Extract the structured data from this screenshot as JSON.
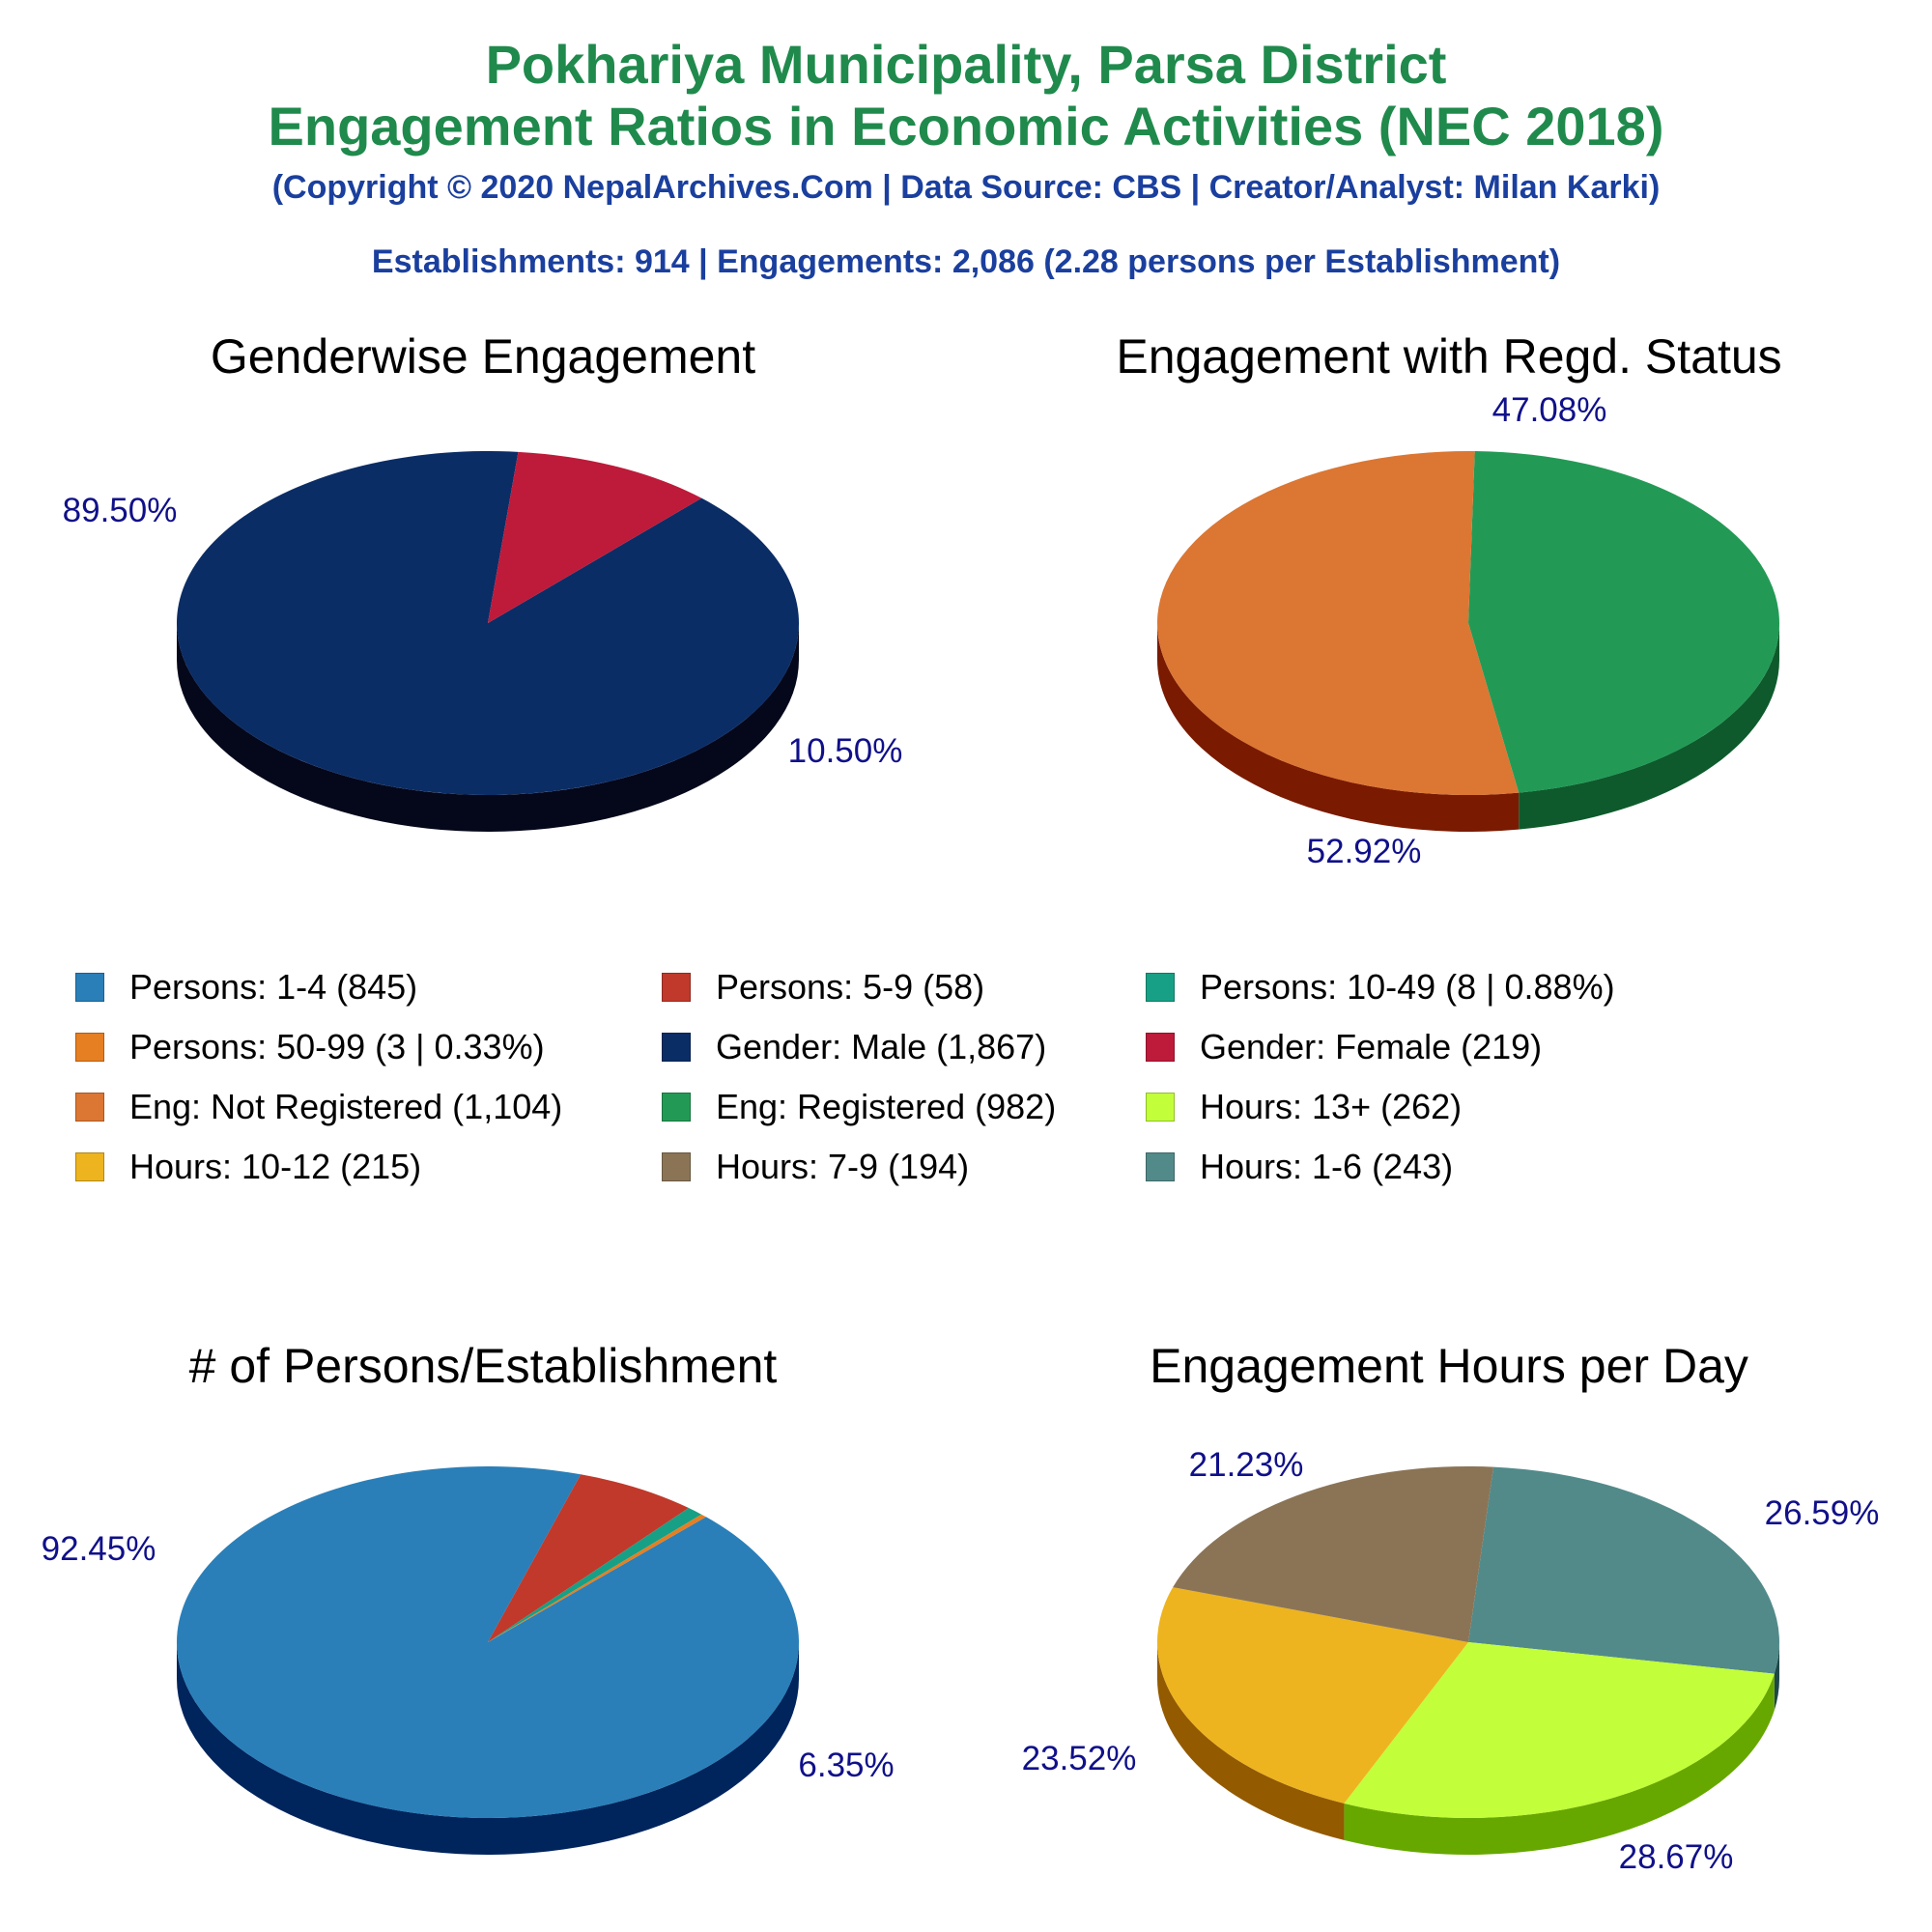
{
  "header": {
    "title_line1": "Pokhariya Municipality, Parsa District",
    "title_line2": "Engagement Ratios in Economic Activities (NEC 2018)",
    "copyright": "(Copyright © 2020 NepalArchives.Com | Data Source: CBS | Creator/Analyst: Milan Karki)",
    "summary": "Establishments: 914 | Engagements: 2,086 (2.28 persons per Establishment)"
  },
  "legend": [
    {
      "label": "Persons: 1-4 (845)",
      "color": "#2a7fb8"
    },
    {
      "label": "Persons: 5-9 (58)",
      "color": "#c0392b"
    },
    {
      "label": "Persons: 10-49 (8 | 0.88%)",
      "color": "#17a085"
    },
    {
      "label": "Persons: 50-99 (3 | 0.33%)",
      "color": "#e67e22"
    },
    {
      "label": "Gender: Male (1,867)",
      "color": "#0b2d66"
    },
    {
      "label": "Gender: Female (219)",
      "color": "#be1a3a"
    },
    {
      "label": "Eng: Not Registered (1,104)",
      "color": "#dc7633"
    },
    {
      "label": "Eng: Registered (982)",
      "color": "#229a55"
    },
    {
      "label": "Hours: 13+ (262)",
      "color": "#c2ff3a"
    },
    {
      "label": "Hours: 10-12 (215)",
      "color": "#edb41f"
    },
    {
      "label": "Hours: 7-9 (194)",
      "color": "#8b7456"
    },
    {
      "label": "Hours: 1-6 (243)",
      "color": "#528a8a"
    }
  ],
  "chart_data": [
    {
      "type": "pie",
      "title": "Genderwise Engagement",
      "slices": [
        {
          "name": "Gender: Male",
          "value": 1867,
          "label": "89.50%",
          "color": "#0b2d66",
          "side": "#05081a"
        },
        {
          "name": "Gender: Female",
          "value": 219,
          "label": "10.50%",
          "color": "#be1a3a",
          "side": "#6e0000"
        }
      ]
    },
    {
      "type": "pie",
      "title": "Engagement with Regd. Status",
      "slices": [
        {
          "name": "Eng: Registered",
          "value": 982,
          "label": "47.08%",
          "color": "#229a55",
          "side": "#0e5a2c"
        },
        {
          "name": "Eng: Not Registered",
          "value": 1104,
          "label": "52.92%",
          "color": "#dc7633",
          "side": "#7a1a00"
        }
      ]
    },
    {
      "type": "pie",
      "title": "# of Persons/Establishment",
      "slices": [
        {
          "name": "Persons: 1-4",
          "value": 845,
          "label": "92.45%",
          "color": "#2a7fb8",
          "side": "#00245c"
        },
        {
          "name": "Persons: 5-9",
          "value": 58,
          "label": "6.35%",
          "color": "#c0392b",
          "side": "#6e0000"
        },
        {
          "name": "Persons: 10-49",
          "value": 8,
          "label": "",
          "color": "#17a085",
          "side": "#0a5a4a"
        },
        {
          "name": "Persons: 50-99",
          "value": 3,
          "label": "",
          "color": "#e67e22",
          "side": "#8a4a00"
        }
      ]
    },
    {
      "type": "pie",
      "title": "Engagement Hours per Day",
      "slices": [
        {
          "name": "Hours: 1-6",
          "value": 243,
          "label": "26.59%",
          "color": "#528a8a",
          "side": "#1e4747"
        },
        {
          "name": "Hours: 13+",
          "value": 262,
          "label": "28.67%",
          "color": "#c2ff3a",
          "side": "#66a800"
        },
        {
          "name": "Hours: 10-12",
          "value": 215,
          "label": "23.52%",
          "color": "#edb41f",
          "side": "#935a00"
        },
        {
          "name": "Hours: 7-9",
          "value": 194,
          "label": "21.23%",
          "color": "#8b7456",
          "side": "#4a3a25"
        }
      ]
    }
  ]
}
